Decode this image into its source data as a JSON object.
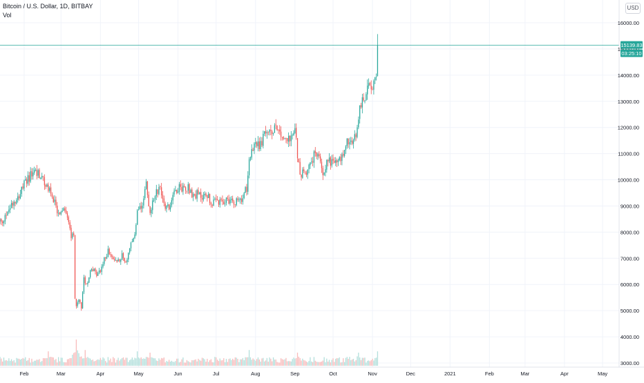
{
  "header": {
    "symbol_title": "Bitcoin / U.S. Dollar, 1D, BITBAY",
    "volume_label": "Vol",
    "currency_button": "USD"
  },
  "price_scale": {
    "last_price_label": "15139.83",
    "countdown_label": "03:25:10"
  },
  "colors": {
    "up": "#26a69a",
    "down": "#ef5350",
    "volume_up": "#b2dfdb",
    "volume_down": "#f8bbbb",
    "last_price_line": "#26a69a",
    "grid": "#f0f3fa",
    "axis_text": "#131722"
  },
  "chart_data": {
    "type": "candlestick",
    "title": "Bitcoin / U.S. Dollar, 1D, BITBAY",
    "xlabel": "",
    "ylabel": "",
    "ylim": [
      2900,
      16600
    ],
    "y_ticks": [
      3000,
      4000,
      5000,
      6000,
      7000,
      8000,
      9000,
      10000,
      11000,
      12000,
      13000,
      14000,
      15000,
      16000
    ],
    "y_tick_labels": [
      "3000.00",
      "4000.00",
      "5000.00",
      "6000.00",
      "7000.00",
      "8000.00",
      "9000.00",
      "10000.00",
      "11000.00",
      "12000.00",
      "13000.00",
      "14000.00",
      "15000.00",
      "16000.00"
    ],
    "x_ticks": [
      "2020-02-01",
      "2020-03-01",
      "2020-04-01",
      "2020-05-01",
      "2020-06-01",
      "2020-07-01",
      "2020-08-01",
      "2020-09-01",
      "2020-10-01",
      "2020-11-01",
      "2020-12-01",
      "2021-01-01",
      "2021-02-01",
      "2021-03-01",
      "2021-04-01",
      "2021-05-01"
    ],
    "x_tick_labels": [
      "Feb",
      "Mar",
      "Apr",
      "May",
      "Jun",
      "Jul",
      "Aug",
      "Sep",
      "Oct",
      "Nov",
      "Dec",
      "2021",
      "Feb",
      "Mar",
      "Apr",
      "May"
    ],
    "xlim": [
      "2020-01-13",
      "2021-05-14"
    ],
    "grid": true,
    "last_price": 15139.83,
    "anchors": [
      [
        "2020-01-13",
        8450
      ],
      [
        "2020-01-15",
        8250
      ],
      [
        "2020-01-18",
        8700
      ],
      [
        "2020-01-22",
        9100
      ],
      [
        "2020-01-26",
        9300
      ],
      [
        "2020-01-30",
        9600
      ],
      [
        "2020-02-03",
        10000
      ],
      [
        "2020-02-06",
        10150
      ],
      [
        "2020-02-09",
        10350
      ],
      [
        "2020-02-12",
        10250
      ],
      [
        "2020-02-15",
        10050
      ],
      [
        "2020-02-18",
        9800
      ],
      [
        "2020-02-21",
        9650
      ],
      [
        "2020-02-24",
        9300
      ],
      [
        "2020-02-27",
        8700
      ],
      [
        "2020-03-01",
        8650
      ],
      [
        "2020-03-04",
        8900
      ],
      [
        "2020-03-07",
        8500
      ],
      [
        "2020-03-09",
        7900
      ],
      [
        "2020-03-11",
        7900
      ],
      [
        "2020-03-12",
        5500
      ],
      [
        "2020-03-13",
        5200
      ],
      [
        "2020-03-15",
        5400
      ],
      [
        "2020-03-17",
        5100
      ],
      [
        "2020-03-19",
        6200
      ],
      [
        "2020-03-22",
        6000
      ],
      [
        "2020-03-25",
        6700
      ],
      [
        "2020-03-28",
        6400
      ],
      [
        "2020-03-31",
        6450
      ],
      [
        "2020-04-03",
        6800
      ],
      [
        "2020-04-07",
        7300
      ],
      [
        "2020-04-10",
        6950
      ],
      [
        "2020-04-14",
        6900
      ],
      [
        "2020-04-18",
        7100
      ],
      [
        "2020-04-21",
        6850
      ],
      [
        "2020-04-25",
        7500
      ],
      [
        "2020-04-28",
        7800
      ],
      [
        "2020-04-30",
        8700
      ],
      [
        "2020-05-03",
        8900
      ],
      [
        "2020-05-07",
        9800
      ],
      [
        "2020-05-10",
        8700
      ],
      [
        "2020-05-14",
        9500
      ],
      [
        "2020-05-18",
        9700
      ],
      [
        "2020-05-21",
        9100
      ],
      [
        "2020-05-25",
        8900
      ],
      [
        "2020-05-28",
        9500
      ],
      [
        "2020-06-01",
        9700
      ],
      [
        "2020-06-05",
        9700
      ],
      [
        "2020-06-09",
        9750
      ],
      [
        "2020-06-12",
        9400
      ],
      [
        "2020-06-16",
        9450
      ],
      [
        "2020-06-20",
        9350
      ],
      [
        "2020-06-24",
        9450
      ],
      [
        "2020-06-27",
        9100
      ],
      [
        "2020-07-01",
        9150
      ],
      [
        "2020-07-05",
        9100
      ],
      [
        "2020-07-10",
        9250
      ],
      [
        "2020-07-15",
        9200
      ],
      [
        "2020-07-20",
        9150
      ],
      [
        "2020-07-22",
        9350
      ],
      [
        "2020-07-25",
        9700
      ],
      [
        "2020-07-27",
        10900
      ],
      [
        "2020-07-30",
        11100
      ],
      [
        "2020-08-02",
        11400
      ],
      [
        "2020-08-04",
        11200
      ],
      [
        "2020-08-07",
        11600
      ],
      [
        "2020-08-10",
        11900
      ],
      [
        "2020-08-13",
        11700
      ],
      [
        "2020-08-17",
        12200
      ],
      [
        "2020-08-20",
        11800
      ],
      [
        "2020-08-24",
        11600
      ],
      [
        "2020-08-28",
        11500
      ],
      [
        "2020-09-01",
        11900
      ],
      [
        "2020-09-03",
        11000
      ],
      [
        "2020-09-05",
        10300
      ],
      [
        "2020-09-08",
        10200
      ],
      [
        "2020-09-12",
        10450
      ],
      [
        "2020-09-16",
        10900
      ],
      [
        "2020-09-19",
        11000
      ],
      [
        "2020-09-23",
        10300
      ],
      [
        "2020-09-27",
        10750
      ],
      [
        "2020-10-01",
        10700
      ],
      [
        "2020-10-05",
        10650
      ],
      [
        "2020-10-09",
        11000
      ],
      [
        "2020-10-12",
        11450
      ],
      [
        "2020-10-16",
        11350
      ],
      [
        "2020-10-20",
        11900
      ],
      [
        "2020-10-22",
        12900
      ],
      [
        "2020-10-25",
        13100
      ],
      [
        "2020-10-28",
        13400
      ],
      [
        "2020-10-30",
        13700
      ],
      [
        "2020-11-02",
        13600
      ],
      [
        "2020-11-04",
        14000
      ],
      [
        "2020-11-05",
        15139.83
      ]
    ],
    "volume_peaks": [
      [
        "2020-02-20",
        0.55
      ],
      [
        "2020-03-13",
        1.0
      ],
      [
        "2020-03-20",
        0.6
      ],
      [
        "2020-04-30",
        0.55
      ],
      [
        "2020-05-10",
        0.5
      ],
      [
        "2020-07-27",
        0.6
      ],
      [
        "2020-09-03",
        0.5
      ],
      [
        "2020-10-21",
        0.5
      ],
      [
        "2020-11-05",
        0.55
      ]
    ],
    "volume_range_px": [
      492,
      530
    ]
  }
}
